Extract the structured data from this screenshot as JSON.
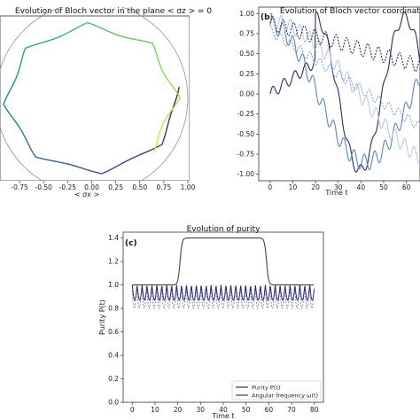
{
  "chart_data": [
    {
      "id": "a",
      "type": "line",
      "panel_label": "",
      "title": "Evolution of Bloch vector in the plane < σz > = 0",
      "xlabel": "< σx >",
      "ylabel": "",
      "xlim": [
        -1.0,
        1.0
      ],
      "ylim": [
        -1.0,
        1.0
      ],
      "xticks": [
        "-0.75",
        "-0.50",
        "-0.25",
        "0.00",
        "0.25",
        "0.50",
        "0.75",
        "1.00"
      ],
      "unit_circle": true,
      "trajectory": "spiral Bloch trajectory colored by time (viridis: dark purple → green → yellow)"
    },
    {
      "id": "b",
      "type": "line",
      "panel_label": "(b)",
      "title": "Evolution of Bloch vector coordinates",
      "xlabel": "Time t",
      "ylabel": "",
      "xlim": [
        -5,
        66
      ],
      "ylim": [
        -1.08,
        1.08
      ],
      "xticks": [
        0,
        10,
        20,
        30,
        40,
        50,
        60
      ],
      "yticks": [
        "-1.00",
        "-0.75",
        "-0.50",
        "-0.25",
        "0.00",
        "0.25",
        "0.50",
        "0.75",
        "1.00"
      ],
      "series": [
        {
          "color": "#2d2a5e",
          "dash": false,
          "role": "dark solid"
        },
        {
          "color": "#5f87b8",
          "dash": false,
          "role": "blue solid"
        },
        {
          "color": "#b8c8e6",
          "dash": false,
          "role": "light solid"
        },
        {
          "color": "#2d2a5e",
          "dash": true,
          "role": "dark dashed"
        },
        {
          "color": "#7d9fcc",
          "dash": true,
          "role": "light dashed"
        }
      ]
    },
    {
      "id": "c",
      "type": "line",
      "panel_label": "(c)",
      "title": "Evolution of purity",
      "xlabel": "Time t",
      "ylabel": "Purity P(t)",
      "xlim": [
        -4,
        84
      ],
      "ylim": [
        0.0,
        1.45
      ],
      "xticks": [
        0,
        10,
        20,
        30,
        40,
        50,
        60,
        70,
        80
      ],
      "yticks": [
        "0.0",
        "0.2",
        "0.4",
        "0.6",
        "0.8",
        "1.0",
        "1.2",
        "1.4"
      ],
      "series": [
        {
          "name": "Purity P(t)",
          "color": "#2e2b6b",
          "dash": false
        },
        {
          "name": "Angular frequency ω(t)",
          "color": "#444444",
          "dash": false
        }
      ]
    }
  ]
}
